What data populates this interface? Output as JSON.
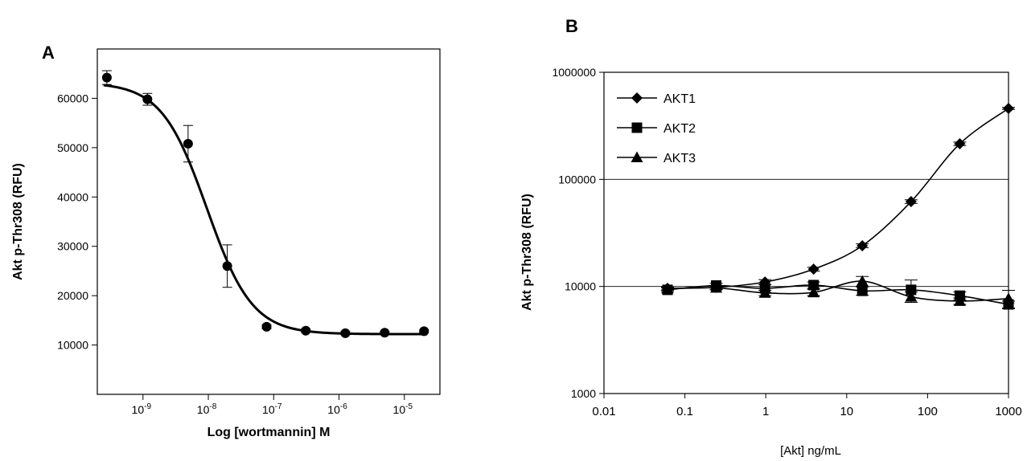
{
  "chart_data": [
    {
      "panel_label": "A",
      "type": "scatter",
      "xlabel": "Log [wortmannin] M",
      "ylabel": "Akt p-Thr308 (RFU)",
      "xscale": "log",
      "xlim": [
        2e-10,
        3.5e-05
      ],
      "ylim": [
        0,
        70000
      ],
      "x_ticks": [
        {
          "value": 1e-09,
          "base": "10",
          "exp": "-9"
        },
        {
          "value": 1e-08,
          "base": "10",
          "exp": "-8"
        },
        {
          "value": 1e-07,
          "base": "10",
          "exp": "-7"
        },
        {
          "value": 1e-06,
          "base": "10",
          "exp": "-6"
        },
        {
          "value": 1e-05,
          "base": "10",
          "exp": "-5"
        }
      ],
      "y_ticks": [
        {
          "value": 10000,
          "label": "10000"
        },
        {
          "value": 20000,
          "label": "20000"
        },
        {
          "value": 30000,
          "label": "30000"
        },
        {
          "value": 40000,
          "label": "40000"
        },
        {
          "value": 50000,
          "label": "50000"
        },
        {
          "value": 60000,
          "label": "60000"
        }
      ],
      "grid": false,
      "marker": "circle",
      "points": [
        {
          "x": 2.8e-10,
          "y": 64200,
          "err": 1400
        },
        {
          "x": 1.17e-09,
          "y": 59800,
          "err": 1200
        },
        {
          "x": 4.9e-09,
          "y": 50800,
          "err": 3700
        },
        {
          "x": 1.95e-08,
          "y": 26000,
          "err": 4300
        },
        {
          "x": 7.8e-08,
          "y": 13700,
          "err": 400
        },
        {
          "x": 3.1e-07,
          "y": 12900,
          "err": 350
        },
        {
          "x": 1.25e-06,
          "y": 12400,
          "err": 350
        },
        {
          "x": 5e-06,
          "y": 12500,
          "err": 300
        },
        {
          "x": 2e-05,
          "y": 12800,
          "err": 300
        }
      ],
      "fit": {
        "model": "4PL",
        "top": 63200,
        "bottom": 12200,
        "ic50": 9.5e-09,
        "hill": 1.25
      }
    },
    {
      "panel_label": "B",
      "type": "line",
      "xlabel": "[Akt] ng/mL",
      "ylabel": "Akt p-Thr308 (RFU)",
      "xscale": "log",
      "yscale": "log",
      "xlim": [
        0.01,
        1000
      ],
      "ylim": [
        1000,
        1000000
      ],
      "x_ticks": [
        {
          "value": 0.01,
          "label": "0.01"
        },
        {
          "value": 0.1,
          "label": "0.1"
        },
        {
          "value": 1,
          "label": "1"
        },
        {
          "value": 10,
          "label": "10"
        },
        {
          "value": 100,
          "label": "100"
        },
        {
          "value": 1000,
          "label": "1000"
        }
      ],
      "y_ticks": [
        {
          "value": 1000,
          "label": "1000"
        },
        {
          "value": 10000,
          "label": "10000"
        },
        {
          "value": 100000,
          "label": "100000"
        },
        {
          "value": 1000000,
          "label": "1000000"
        }
      ],
      "grid": true,
      "legend_position": "top-left",
      "x": [
        0.061,
        0.244,
        0.977,
        3.9,
        15.6,
        62.5,
        250,
        1000
      ],
      "series": [
        {
          "name": "AKT1",
          "marker": "diamond",
          "values": [
            9600,
            9800,
            11000,
            14500,
            24000,
            62000,
            215000,
            460000
          ],
          "errors": [
            300,
            400,
            600,
            600,
            1000,
            2500,
            8000,
            10000
          ]
        },
        {
          "name": "AKT2",
          "marker": "square",
          "values": [
            9300,
            10200,
            9600,
            10300,
            9100,
            9300,
            8200,
            6800
          ],
          "errors": [
            400,
            500,
            800,
            700,
            800,
            2200,
            700,
            500
          ]
        },
        {
          "name": "AKT3",
          "marker": "triangle",
          "values": [
            9500,
            9700,
            8700,
            8800,
            11200,
            8000,
            7300,
            7700
          ],
          "errors": [
            300,
            400,
            500,
            600,
            1200,
            900,
            500,
            1500
          ]
        }
      ]
    }
  ]
}
